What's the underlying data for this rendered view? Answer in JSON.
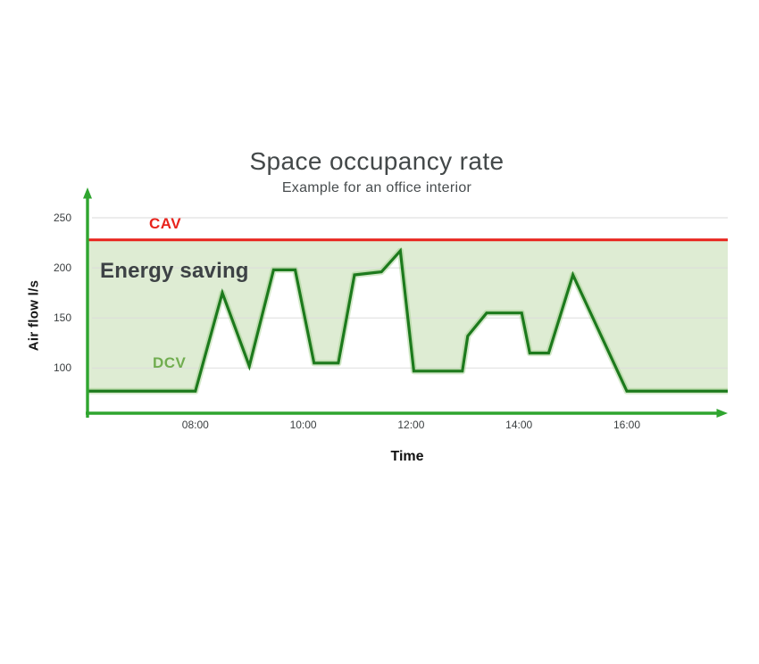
{
  "page": {
    "background_color": "#ffffff"
  },
  "chart": {
    "title": "Space occupancy rate",
    "subtitle": "Example for an office interior",
    "energy_saving_label": "Energy saving",
    "cav_label": "CAV",
    "dcv_label": "DCV",
    "y_axis_label": "Air flow l/s",
    "x_axis_label": "Time"
  },
  "colors": {
    "cav_red": "#e8231c",
    "dcv_green": "#1d7a1d",
    "dcv_glow_green": "#8ec673",
    "axis_green": "#2fa52f",
    "area_fill_green": "#d8e9cb",
    "dcv_label_green": "#71ad50",
    "grid_gray": "#dcdcdc",
    "text_dark": "#3d4245"
  },
  "chart_data": {
    "type": "line",
    "title": "Space occupancy rate",
    "subtitle": "Example for an office interior",
    "xlabel": "Time",
    "ylabel": "Air flow l/s",
    "grid": true,
    "xlim_hours": [
      6.0,
      17.9
    ],
    "ylim": [
      55,
      270
    ],
    "y_ticks": [
      250,
      200,
      150,
      100
    ],
    "x_ticks": [
      {
        "hour": 8,
        "label": "08:00"
      },
      {
        "hour": 10,
        "label": "10:00"
      },
      {
        "hour": 12,
        "label": "12:00"
      },
      {
        "hour": 14,
        "label": "14:00"
      },
      {
        "hour": 16,
        "label": "16:00"
      }
    ],
    "area_label": "Energy saving",
    "area_between": [
      "CAV",
      "DCV"
    ],
    "series": [
      {
        "name": "CAV",
        "style": "constant-line",
        "color": "#e8231c",
        "constant_value": 228
      },
      {
        "name": "DCV",
        "style": "line",
        "color": "#1d7a1d",
        "points_hour_value": [
          [
            6.0,
            77
          ],
          [
            8.0,
            77
          ],
          [
            8.5,
            175
          ],
          [
            9.0,
            102
          ],
          [
            9.45,
            198
          ],
          [
            9.85,
            198
          ],
          [
            10.2,
            105
          ],
          [
            10.65,
            105
          ],
          [
            10.95,
            193
          ],
          [
            11.45,
            196
          ],
          [
            11.8,
            217
          ],
          [
            12.05,
            97
          ],
          [
            12.95,
            97
          ],
          [
            13.05,
            132
          ],
          [
            13.4,
            155
          ],
          [
            14.05,
            155
          ],
          [
            14.2,
            115
          ],
          [
            14.55,
            115
          ],
          [
            15.0,
            193
          ],
          [
            16.0,
            77
          ],
          [
            17.9,
            77
          ]
        ]
      }
    ]
  }
}
